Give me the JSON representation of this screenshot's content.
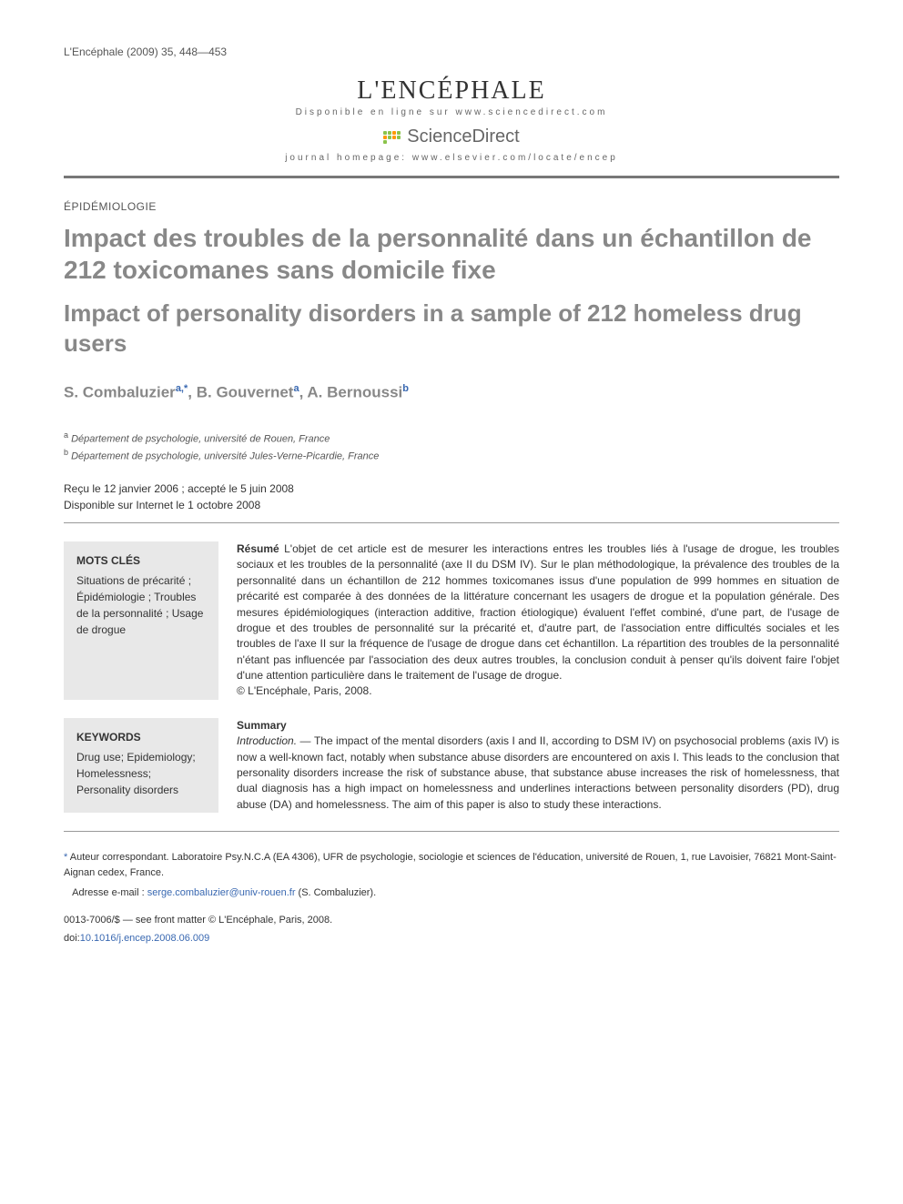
{
  "citation": "L'Encéphale (2009) 35, 448—453",
  "header": {
    "journal_logo": "L'ENCÉPHALE",
    "online": "Disponible en ligne sur www.sciencedirect.com",
    "sciencedirect": "ScienceDirect",
    "homepage": "journal homepage: www.elsevier.com/locate/encep"
  },
  "section": "ÉPIDÉMIOLOGIE",
  "title_fr": "Impact des troubles de la personnalité dans un échantillon de 212 toxicomanes sans domicile fixe",
  "title_en": "Impact of personality disorders in a sample of 212 homeless drug users",
  "authors": {
    "a1_name": "S. Combaluzier",
    "a1_sup": "a,",
    "a2_name": ", B. Gouvernet",
    "a2_sup": "a",
    "a3_name": ", A. Bernoussi",
    "a3_sup": "b"
  },
  "affiliations": {
    "a": "Département de psychologie, université de Rouen, France",
    "b": "Département de psychologie, université Jules-Verne-Picardie, France"
  },
  "dates": {
    "line1": "Reçu le 12 janvier 2006 ; accepté le 5 juin 2008",
    "line2": "Disponible sur Internet le 1 octobre 2008"
  },
  "mots_cles": {
    "head": "MOTS CLÉS",
    "body": "Situations de précarité ; Épidémiologie ; Troubles de la personnalité ; Usage de drogue"
  },
  "resume": {
    "lead": "Résumé",
    "body": "   L'objet de cet article est de mesurer les interactions entres les troubles liés à l'usage de drogue, les troubles sociaux et les troubles de la personnalité (axe II du DSM IV). Sur le plan méthodologique, la prévalence des troubles de la personnalité dans un échantillon de 212 hommes toxicomanes issus d'une population de 999 hommes en situation de précarité est comparée à des données de la littérature concernant les usagers de drogue et la population générale. Des mesures épidémiologiques (interaction additive, fraction étiologique) évaluent l'effet combiné, d'une part, de l'usage de drogue et des troubles de personnalité sur la précarité et, d'autre part, de l'association entre difficultés sociales et les troubles de l'axe II sur la fréquence de l'usage de drogue dans cet échantillon. La répartition des troubles de la personnalité n'étant pas influencée par l'association des deux autres troubles, la conclusion conduit à penser qu'ils doivent faire l'objet d'une attention particulière dans le traitement de l'usage de drogue.",
    "copyright": "© L'Encéphale, Paris, 2008."
  },
  "keywords": {
    "head": "KEYWORDS",
    "body": "Drug use; Epidemiology; Homelessness; Personality disorders"
  },
  "summary": {
    "lead": "Summary",
    "intro_label": "Introduction. — ",
    "intro_body": "The impact of the mental disorders (axis I and II, according to DSM IV) on psychosocial problems (axis IV) is now a well-known fact, notably when substance abuse disorders are encountered on axis I. This leads to the conclusion that personality disorders increase the risk of substance abuse, that substance abuse increases the risk of homelessness, that dual diagnosis has a high impact on homelessness and underlines interactions between personality disorders (PD), drug abuse (DA) and homelessness. The aim of this paper is also to study these interactions."
  },
  "footer": {
    "corr_label": "Auteur correspondant. Laboratoire Psy.N.C.A (EA 4306), UFR de psychologie, sociologie et sciences de l'éducation, université de Rouen, 1, rue Lavoisier, 76821 Mont-Saint-Aignan cedex, France.",
    "email_label": "Adresse e-mail : ",
    "email": "serge.combaluzier@univ-rouen.fr",
    "email_suffix": " (S. Combaluzier).",
    "issn": "0013-7006/$ — see front matter © L'Encéphale, Paris, 2008.",
    "doi_label": "doi:",
    "doi": "10.1016/j.encep.2008.06.009"
  },
  "colors": {
    "title_gray": "#888888",
    "link_blue": "#3968b1",
    "box_bg": "#e8e8e8",
    "rule": "#777777",
    "sd_green": "#8bc34a",
    "sd_orange": "#ff9800"
  }
}
